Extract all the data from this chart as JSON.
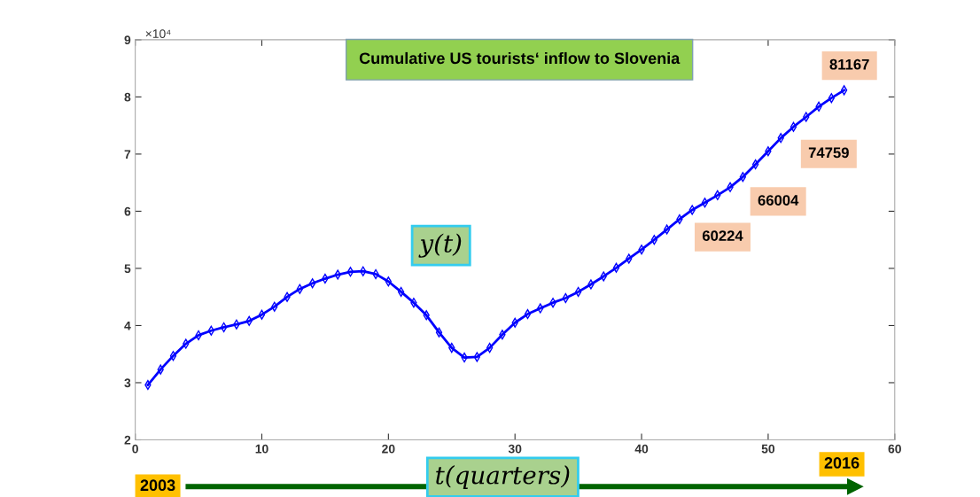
{
  "chart_data": {
    "type": "line",
    "title": "Cumulative US tourists‘ inflow to Slovenia",
    "xlabel": "t(quarters)",
    "ylabel": "y(t)",
    "x": [
      1,
      2,
      3,
      4,
      5,
      6,
      7,
      8,
      9,
      10,
      11,
      12,
      13,
      14,
      15,
      16,
      17,
      18,
      19,
      20,
      21,
      22,
      23,
      24,
      25,
      26,
      27,
      28,
      29,
      30,
      31,
      32,
      33,
      34,
      35,
      36,
      37,
      38,
      39,
      40,
      41,
      42,
      43,
      44,
      45,
      46,
      47,
      48,
      49,
      50,
      51,
      52,
      53,
      54,
      55,
      56
    ],
    "series": [
      {
        "color": "#0000ff",
        "values": [
          2.96,
          3.23,
          3.47,
          3.68,
          3.83,
          3.91,
          3.97,
          4.02,
          4.08,
          4.19,
          4.33,
          4.5,
          4.64,
          4.74,
          4.82,
          4.89,
          4.94,
          4.95,
          4.9,
          4.77,
          4.59,
          4.4,
          4.18,
          3.88,
          3.61,
          3.44,
          3.45,
          3.61,
          3.84,
          4.05,
          4.2,
          4.3,
          4.4,
          4.48,
          4.59,
          4.72,
          4.86,
          5.01,
          5.17,
          5.33,
          5.5,
          5.68,
          5.86,
          6.0224,
          6.15,
          6.28,
          6.42,
          6.6004,
          6.82,
          7.05,
          7.28,
          7.4759,
          7.65,
          7.83,
          7.98,
          8.1167
        ]
      }
    ],
    "xlim": [
      0,
      60
    ],
    "xticks": [
      0,
      10,
      20,
      30,
      40,
      50,
      60
    ],
    "ylim": [
      2,
      9
    ],
    "yticks": [
      2,
      3,
      4,
      5,
      6,
      7,
      8,
      9
    ],
    "marker": "diamond",
    "line_style": "solid",
    "grid": false,
    "legend": false,
    "annotations": [
      "×10⁴",
      "2003",
      "2016",
      {
        "text": "60224",
        "x": 44,
        "y": 6.0224
      },
      {
        "text": "66004",
        "x": 48,
        "y": 6.6004
      },
      {
        "text": "74759",
        "x": 52,
        "y": 7.4759
      },
      {
        "text": "81167",
        "x": 56,
        "y": 8.1167
      }
    ]
  }
}
